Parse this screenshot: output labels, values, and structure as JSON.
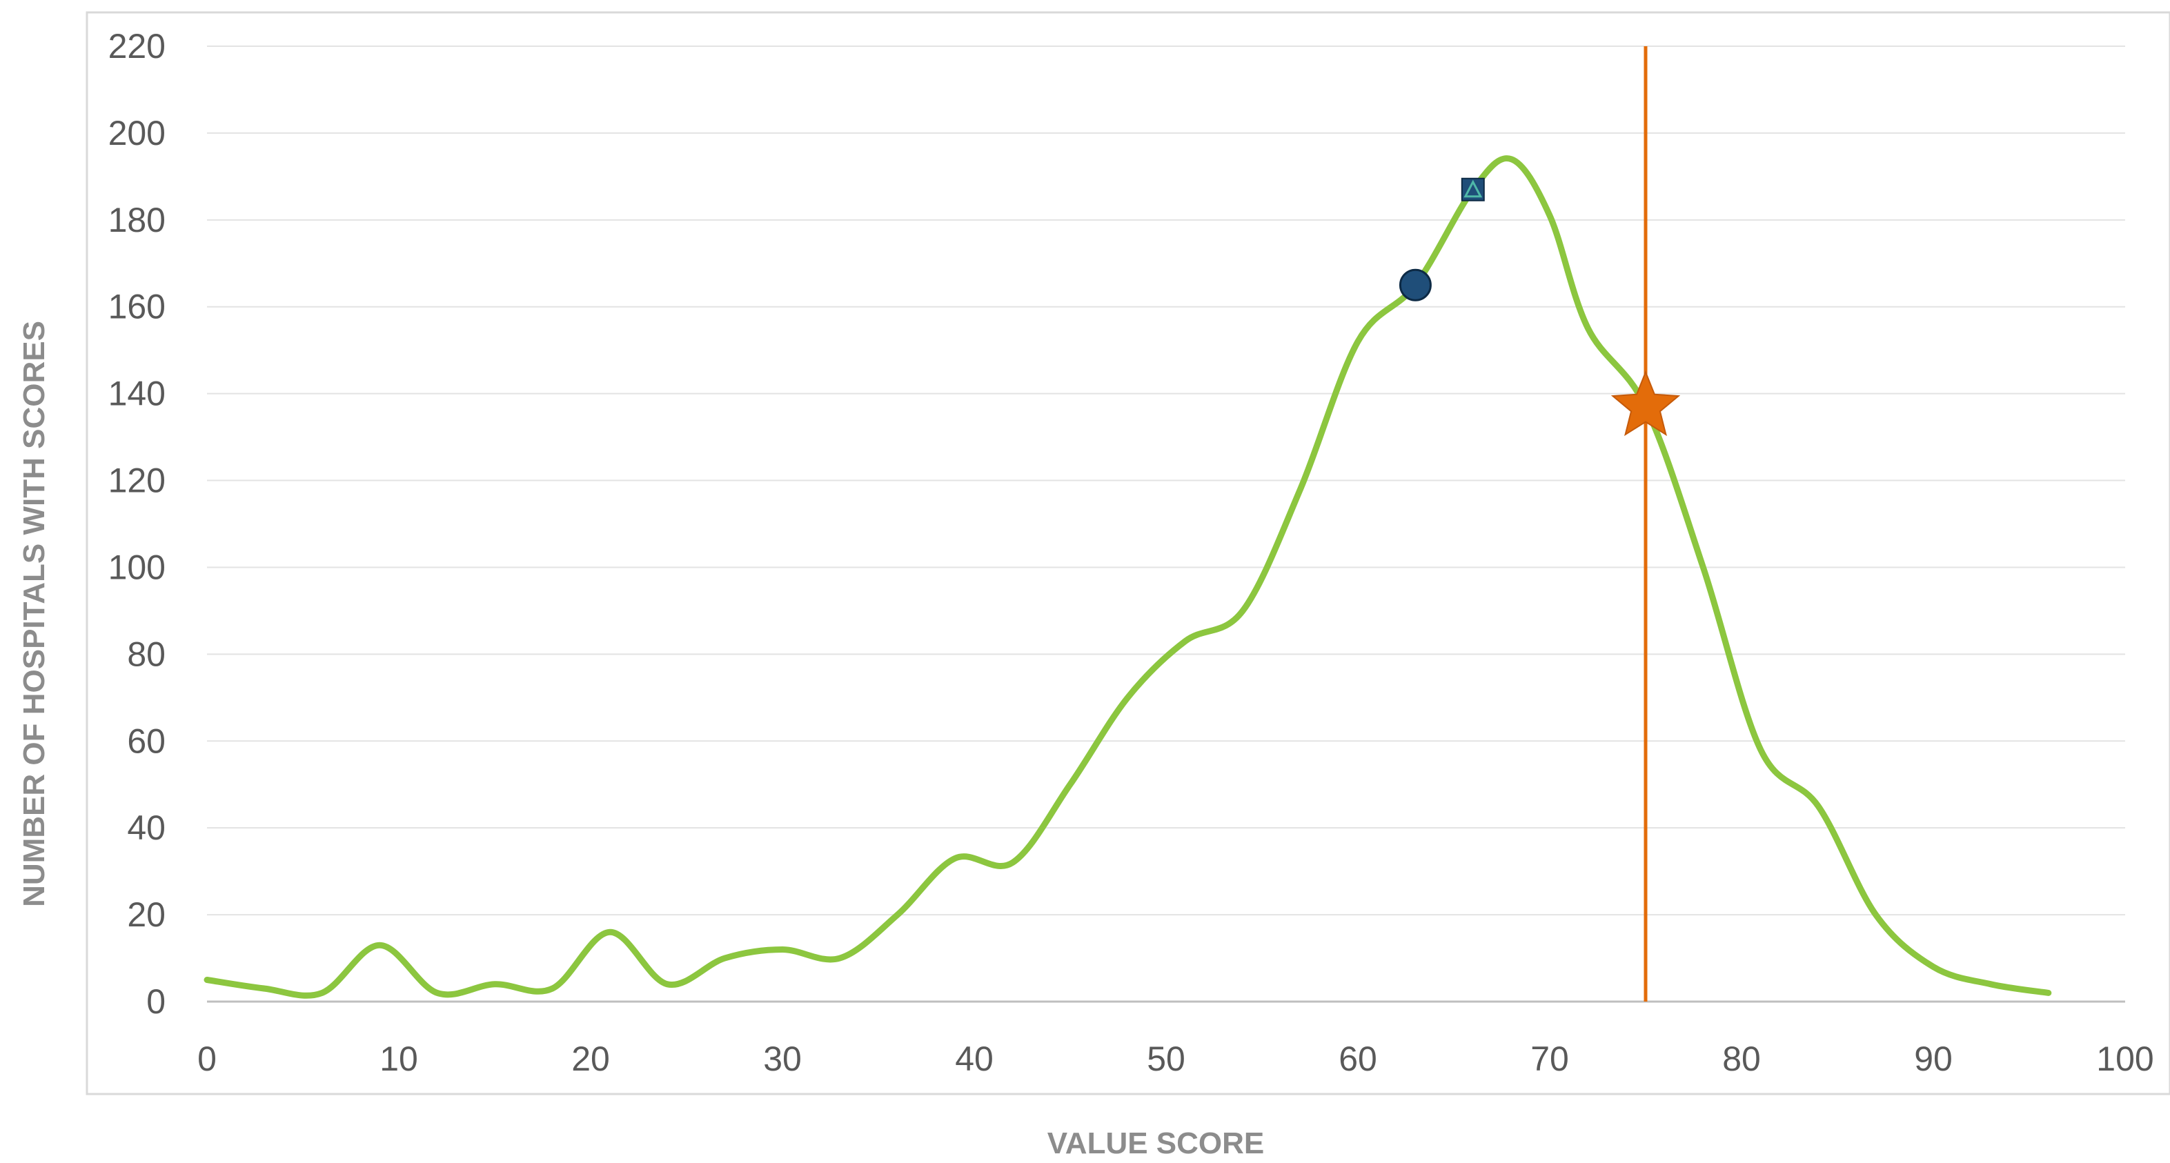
{
  "chart_data": {
    "type": "line",
    "title": "",
    "xlabel": "VALUE SCORE",
    "ylabel": "NUMBER OF HOSPITALS WITH SCORES",
    "xlim": [
      0,
      100
    ],
    "ylim": [
      0,
      220
    ],
    "x_ticks": [
      "0",
      "10",
      "20",
      "30",
      "40",
      "50",
      "60",
      "70",
      "80",
      "90",
      "100"
    ],
    "y_ticks": [
      "0",
      "20",
      "40",
      "60",
      "80",
      "100",
      "120",
      "140",
      "160",
      "180",
      "200",
      "220"
    ],
    "grid": true,
    "legend": "none",
    "series": [
      {
        "color": "#8cc63f",
        "x": [
          0,
          3,
          6,
          9,
          12,
          15,
          18,
          21,
          24,
          27,
          30,
          33,
          36,
          39,
          42,
          45,
          48,
          51,
          54,
          57,
          60,
          63,
          66,
          68,
          70,
          72,
          75,
          78,
          81,
          84,
          87,
          90,
          93,
          96
        ],
        "y": [
          5,
          3,
          2,
          13,
          2,
          4,
          3,
          16,
          4,
          10,
          12,
          10,
          20,
          33,
          32,
          50,
          70,
          83,
          90,
          118,
          152,
          165,
          187,
          194,
          181,
          155,
          137,
          100,
          58,
          45,
          20,
          8,
          4,
          2
        ]
      }
    ],
    "markers": [
      {
        "shape": "circle",
        "x": 63,
        "y": 165,
        "color": "#1f4e79"
      },
      {
        "shape": "square-triangle",
        "x": 66,
        "y": 187,
        "color": "#1f4e79"
      },
      {
        "shape": "star",
        "x": 75,
        "y": 137,
        "color": "#e36c0a"
      }
    ],
    "reference_line": {
      "x": 75,
      "color": "#e36c0a"
    }
  }
}
